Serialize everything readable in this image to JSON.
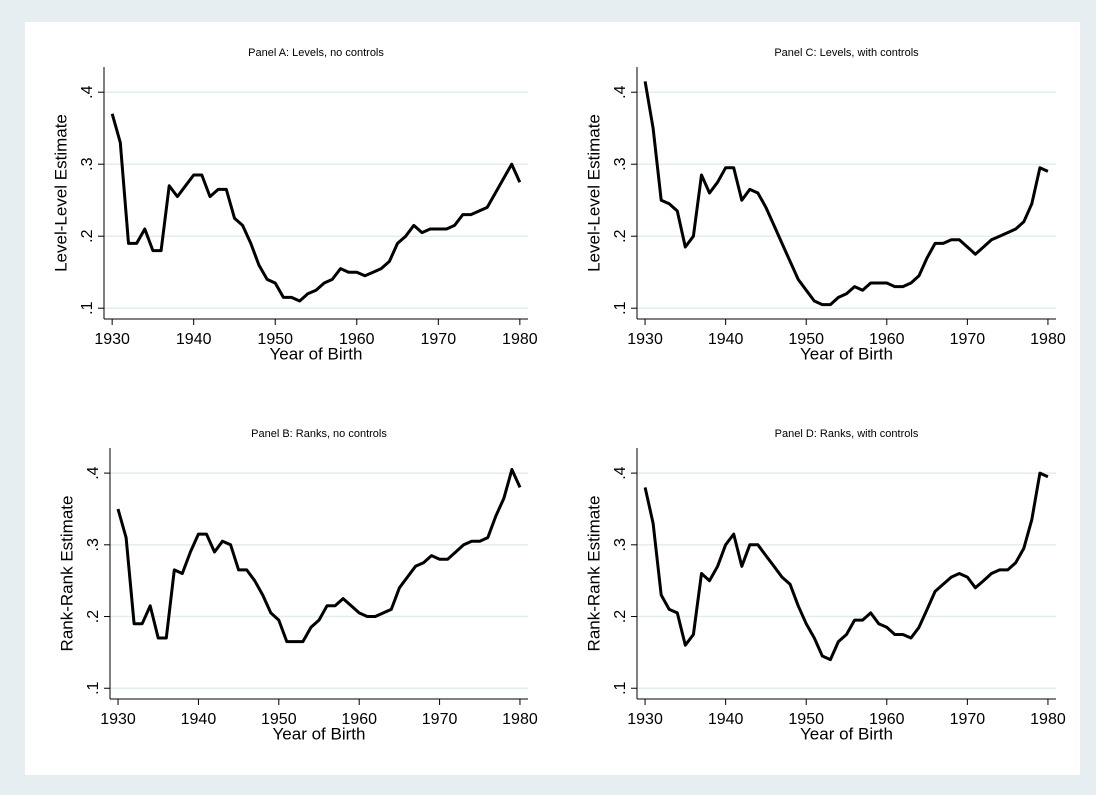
{
  "chart_data": [
    {
      "type": "line",
      "title": "Panel A: Levels, no controls",
      "x_label": "Year of Birth",
      "y_label": "Level-Level Estimate",
      "x": [
        1930,
        1931,
        1932,
        1933,
        1934,
        1935,
        1936,
        1937,
        1938,
        1939,
        1940,
        1941,
        1942,
        1943,
        1944,
        1945,
        1946,
        1947,
        1948,
        1949,
        1950,
        1951,
        1952,
        1953,
        1954,
        1955,
        1956,
        1957,
        1958,
        1959,
        1960,
        1961,
        1962,
        1963,
        1964,
        1965,
        1966,
        1967,
        1968,
        1969,
        1970,
        1971,
        1972,
        1973,
        1974,
        1975,
        1976,
        1977,
        1978,
        1979,
        1980
      ],
      "values": [
        0.37,
        0.33,
        0.19,
        0.19,
        0.21,
        0.18,
        0.18,
        0.27,
        0.255,
        0.27,
        0.285,
        0.285,
        0.255,
        0.265,
        0.265,
        0.225,
        0.215,
        0.19,
        0.16,
        0.14,
        0.135,
        0.115,
        0.115,
        0.11,
        0.12,
        0.125,
        0.135,
        0.14,
        0.155,
        0.15,
        0.15,
        0.145,
        0.15,
        0.155,
        0.165,
        0.19,
        0.2,
        0.215,
        0.205,
        0.21,
        0.21,
        0.21,
        0.215,
        0.23,
        0.23,
        0.235,
        0.24,
        0.26,
        0.28,
        0.3,
        0.275
      ],
      "color": "#000000",
      "xlim": [
        1929,
        1981
      ],
      "xticks": [
        1930,
        1940,
        1950,
        1960,
        1970,
        1980
      ],
      "ylim": [
        0.085,
        0.435
      ],
      "yticks": [
        {
          "value": 0.1,
          "label": ".1"
        },
        {
          "value": 0.2,
          "label": ".2"
        },
        {
          "value": 0.3,
          "label": ".3"
        },
        {
          "value": 0.4,
          "label": ".4"
        }
      ],
      "grid": true
    },
    {
      "type": "line",
      "title": "Panel C: Levels, with controls",
      "x_label": "Year of Birth",
      "y_label": "Level-Level Estimate",
      "x": [
        1930,
        1931,
        1932,
        1933,
        1934,
        1935,
        1936,
        1937,
        1938,
        1939,
        1940,
        1941,
        1942,
        1943,
        1944,
        1945,
        1946,
        1947,
        1948,
        1949,
        1950,
        1951,
        1952,
        1953,
        1954,
        1955,
        1956,
        1957,
        1958,
        1959,
        1960,
        1961,
        1962,
        1963,
        1964,
        1965,
        1966,
        1967,
        1968,
        1969,
        1970,
        1971,
        1972,
        1973,
        1974,
        1975,
        1976,
        1977,
        1978,
        1979,
        1980
      ],
      "values": [
        0.415,
        0.35,
        0.25,
        0.245,
        0.235,
        0.185,
        0.2,
        0.285,
        0.26,
        0.275,
        0.295,
        0.295,
        0.25,
        0.265,
        0.26,
        0.24,
        0.215,
        0.19,
        0.165,
        0.14,
        0.125,
        0.11,
        0.105,
        0.105,
        0.115,
        0.12,
        0.13,
        0.125,
        0.135,
        0.135,
        0.135,
        0.13,
        0.13,
        0.135,
        0.145,
        0.17,
        0.19,
        0.19,
        0.195,
        0.195,
        0.185,
        0.175,
        0.185,
        0.195,
        0.2,
        0.205,
        0.21,
        0.22,
        0.245,
        0.295,
        0.29
      ],
      "color": "#000000",
      "xlim": [
        1929,
        1981
      ],
      "xticks": [
        1930,
        1940,
        1950,
        1960,
        1970,
        1980
      ],
      "ylim": [
        0.085,
        0.435
      ],
      "yticks": [
        {
          "value": 0.1,
          "label": ".1"
        },
        {
          "value": 0.2,
          "label": ".2"
        },
        {
          "value": 0.3,
          "label": ".3"
        },
        {
          "value": 0.4,
          "label": ".4"
        }
      ],
      "grid": true
    },
    {
      "type": "line",
      "title": "Panel B: Ranks, no controls",
      "x_label": "Year of Birth",
      "y_label": "Rank-Rank Estimate",
      "x": [
        1930,
        1931,
        1932,
        1933,
        1934,
        1935,
        1936,
        1937,
        1938,
        1939,
        1940,
        1941,
        1942,
        1943,
        1944,
        1945,
        1946,
        1947,
        1948,
        1949,
        1950,
        1951,
        1952,
        1953,
        1954,
        1955,
        1956,
        1957,
        1958,
        1959,
        1960,
        1961,
        1962,
        1963,
        1964,
        1965,
        1966,
        1967,
        1968,
        1969,
        1970,
        1971,
        1972,
        1973,
        1974,
        1975,
        1976,
        1977,
        1978,
        1979,
        1980
      ],
      "values": [
        0.35,
        0.31,
        0.19,
        0.19,
        0.215,
        0.17,
        0.17,
        0.265,
        0.26,
        0.29,
        0.315,
        0.315,
        0.29,
        0.305,
        0.3,
        0.265,
        0.265,
        0.25,
        0.23,
        0.205,
        0.195,
        0.165,
        0.165,
        0.165,
        0.185,
        0.195,
        0.215,
        0.215,
        0.225,
        0.215,
        0.205,
        0.2,
        0.2,
        0.205,
        0.21,
        0.24,
        0.255,
        0.27,
        0.275,
        0.285,
        0.28,
        0.28,
        0.29,
        0.3,
        0.305,
        0.305,
        0.31,
        0.34,
        0.365,
        0.405,
        0.38
      ],
      "color": "#000000",
      "xlim": [
        1929,
        1981
      ],
      "xticks": [
        1930,
        1940,
        1950,
        1960,
        1970,
        1980
      ],
      "ylim": [
        0.085,
        0.435
      ],
      "yticks": [
        {
          "value": 0.1,
          "label": ".1"
        },
        {
          "value": 0.2,
          "label": ".2"
        },
        {
          "value": 0.3,
          "label": ".3"
        },
        {
          "value": 0.4,
          "label": ".4"
        }
      ],
      "grid": true
    },
    {
      "type": "line",
      "title": "Panel D: Ranks, with controls",
      "x_label": "Year of Birth",
      "y_label": "Rank-Rank Estimate",
      "x": [
        1930,
        1931,
        1932,
        1933,
        1934,
        1935,
        1936,
        1937,
        1938,
        1939,
        1940,
        1941,
        1942,
        1943,
        1944,
        1945,
        1946,
        1947,
        1948,
        1949,
        1950,
        1951,
        1952,
        1953,
        1954,
        1955,
        1956,
        1957,
        1958,
        1959,
        1960,
        1961,
        1962,
        1963,
        1964,
        1965,
        1966,
        1967,
        1968,
        1969,
        1970,
        1971,
        1972,
        1973,
        1974,
        1975,
        1976,
        1977,
        1978,
        1979,
        1980
      ],
      "values": [
        0.38,
        0.33,
        0.23,
        0.21,
        0.205,
        0.16,
        0.175,
        0.26,
        0.25,
        0.27,
        0.3,
        0.315,
        0.27,
        0.3,
        0.3,
        0.285,
        0.27,
        0.255,
        0.245,
        0.215,
        0.19,
        0.17,
        0.145,
        0.14,
        0.165,
        0.175,
        0.195,
        0.195,
        0.205,
        0.19,
        0.185,
        0.175,
        0.175,
        0.17,
        0.185,
        0.21,
        0.235,
        0.245,
        0.255,
        0.26,
        0.255,
        0.24,
        0.25,
        0.26,
        0.265,
        0.265,
        0.275,
        0.295,
        0.335,
        0.4,
        0.395
      ],
      "color": "#000000",
      "xlim": [
        1929,
        1981
      ],
      "xticks": [
        1930,
        1940,
        1950,
        1960,
        1970,
        1980
      ],
      "ylim": [
        0.085,
        0.435
      ],
      "yticks": [
        {
          "value": 0.1,
          "label": ".1"
        },
        {
          "value": 0.2,
          "label": ".2"
        },
        {
          "value": 0.3,
          "label": ".3"
        },
        {
          "value": 0.4,
          "label": ".4"
        }
      ],
      "grid": true
    }
  ]
}
